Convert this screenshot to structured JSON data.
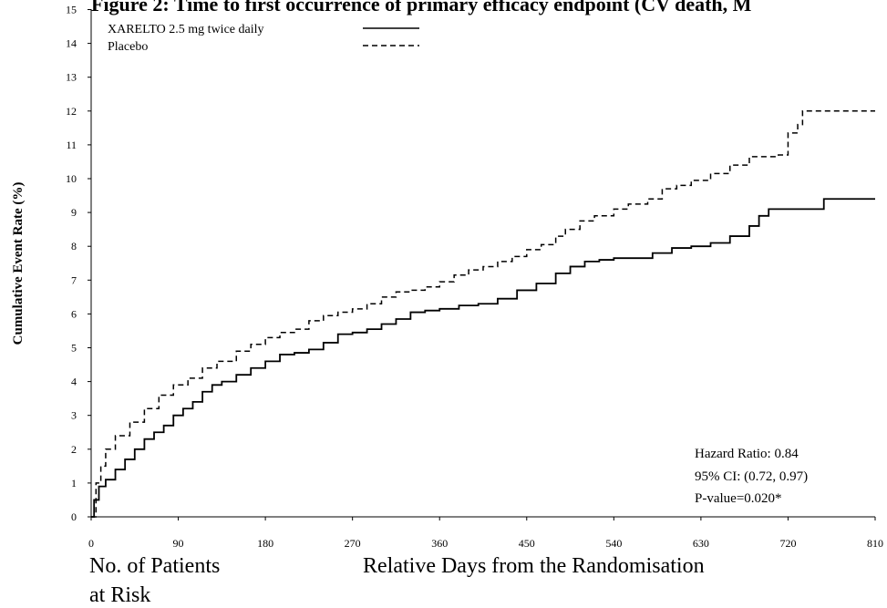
{
  "chart_data": {
    "type": "line",
    "title": "Figure 2: Time to first occurrence of primary efficacy endpoint (CV death, M",
    "x_label": "Relative Days from the Randomisation",
    "y_label": "Cumulative Event Rate (%)",
    "risk_label": [
      "No. of Patients",
      "at Risk"
    ],
    "annotations": [
      "Hazard Ratio: 0.84",
      "95% CI:  (0.72, 0.97)",
      "P-value=0.020*"
    ],
    "xlim": [
      0,
      810
    ],
    "ylim": [
      0,
      15
    ],
    "xticks": [
      0,
      90,
      180,
      270,
      360,
      450,
      540,
      630,
      720,
      810
    ],
    "yticks": [
      0,
      1,
      2,
      3,
      4,
      5,
      6,
      7,
      8,
      9,
      10,
      11,
      12,
      13,
      14,
      15
    ],
    "step": true,
    "legend": "upper left",
    "series": [
      {
        "name": "XARELTO 2.5 mg twice daily",
        "color": "#000000",
        "dash": false,
        "x": [
          0,
          3,
          8,
          15,
          25,
          35,
          45,
          55,
          65,
          75,
          85,
          95,
          105,
          115,
          125,
          135,
          150,
          165,
          180,
          195,
          210,
          225,
          240,
          255,
          270,
          285,
          300,
          315,
          330,
          345,
          360,
          380,
          400,
          420,
          440,
          460,
          480,
          495,
          510,
          525,
          540,
          560,
          580,
          600,
          620,
          640,
          660,
          680,
          690,
          700,
          757,
          810
        ],
        "values": [
          0,
          0.5,
          0.9,
          1.1,
          1.4,
          1.7,
          2.0,
          2.3,
          2.5,
          2.7,
          3.0,
          3.2,
          3.4,
          3.7,
          3.9,
          4.0,
          4.2,
          4.4,
          4.6,
          4.8,
          4.85,
          4.95,
          5.15,
          5.4,
          5.45,
          5.55,
          5.7,
          5.85,
          6.05,
          6.1,
          6.15,
          6.25,
          6.3,
          6.45,
          6.7,
          6.9,
          7.2,
          7.4,
          7.55,
          7.6,
          7.65,
          7.65,
          7.8,
          7.95,
          8.0,
          8.1,
          8.3,
          8.6,
          8.9,
          9.1,
          9.4,
          9.4
        ]
      },
      {
        "name": "Placebo",
        "color": "#000000",
        "dash": true,
        "x": [
          0,
          5,
          10,
          15,
          25,
          40,
          55,
          70,
          85,
          100,
          115,
          130,
          150,
          165,
          180,
          195,
          210,
          225,
          240,
          255,
          270,
          285,
          300,
          315,
          330,
          345,
          360,
          375,
          390,
          405,
          420,
          435,
          450,
          465,
          480,
          490,
          505,
          520,
          540,
          555,
          575,
          590,
          605,
          620,
          640,
          660,
          680,
          710,
          720,
          730,
          735,
          810
        ],
        "values": [
          0,
          1.0,
          1.5,
          2.0,
          2.4,
          2.8,
          3.2,
          3.6,
          3.9,
          4.1,
          4.4,
          4.6,
          4.9,
          5.1,
          5.3,
          5.45,
          5.55,
          5.8,
          5.95,
          6.05,
          6.15,
          6.3,
          6.5,
          6.65,
          6.7,
          6.8,
          6.95,
          7.15,
          7.3,
          7.4,
          7.55,
          7.7,
          7.9,
          8.05,
          8.3,
          8.5,
          8.75,
          8.9,
          9.1,
          9.25,
          9.4,
          9.7,
          9.8,
          9.95,
          10.15,
          10.4,
          10.65,
          10.7,
          11.35,
          11.6,
          12.0,
          12.0
        ]
      }
    ]
  }
}
